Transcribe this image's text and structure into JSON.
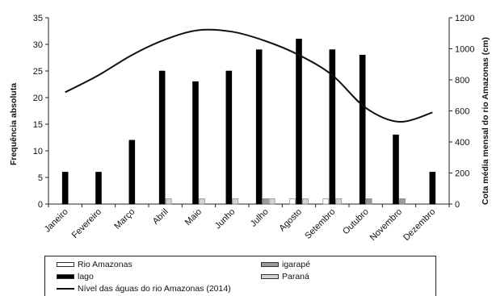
{
  "chart_data": {
    "type": "bar",
    "categories": [
      "Janeiro",
      "Fevereiro",
      "Março",
      "Abril",
      "Maio",
      "Junho",
      "Julho",
      "Agosto",
      "Setembro",
      "Outubro",
      "Novembro",
      "Dezembro"
    ],
    "series": [
      {
        "name": "Rio Amazonas",
        "color": "#ffffff",
        "values": [
          0,
          0,
          0,
          0,
          0,
          0,
          0,
          1,
          1,
          0,
          0,
          0
        ]
      },
      {
        "name": "lago",
        "color": "#000000",
        "values": [
          6,
          6,
          12,
          25,
          23,
          25,
          29,
          31,
          29,
          28,
          13,
          6
        ]
      },
      {
        "name": "igarapé",
        "color": "#9a9a9a",
        "values": [
          0,
          0,
          0,
          0,
          0,
          0,
          1,
          0,
          0,
          1,
          1,
          0
        ]
      },
      {
        "name": "Paraná",
        "color": "#d3d3d3",
        "values": [
          0,
          0,
          0,
          1,
          1,
          1,
          1,
          1,
          1,
          0,
          0,
          0
        ]
      }
    ],
    "line_series": {
      "name": "Nível das águas do rio Amazonas (2014)",
      "color": "#111111",
      "axis": "right",
      "values": [
        720,
        830,
        960,
        1060,
        1120,
        1110,
        1050,
        960,
        830,
        620,
        530,
        590
      ]
    },
    "ylabel": "Frequência absoluta",
    "ylabel_right": "Cota média mensal do rio Amazonas (cm)",
    "ylim": [
      0,
      35
    ],
    "yticks": [
      0,
      5,
      10,
      15,
      20,
      25,
      30,
      35
    ],
    "ylim_right": [
      0,
      1200
    ],
    "yticks_right": [
      0,
      200,
      400,
      600,
      800,
      1000,
      1200
    ],
    "grid": false,
    "legend_position": "bottom"
  },
  "legend": {
    "items": [
      {
        "label": "Rio Amazonas",
        "kind": "box",
        "color": "#ffffff"
      },
      {
        "label": "igarapé",
        "kind": "box",
        "color": "#9a9a9a"
      },
      {
        "label": "lago",
        "kind": "box",
        "color": "#000000"
      },
      {
        "label": "Paraná",
        "kind": "box",
        "color": "#d3d3d3"
      },
      {
        "label": "Nível das águas do rio Amazonas (2014)",
        "kind": "line",
        "color": "#111111"
      }
    ]
  }
}
